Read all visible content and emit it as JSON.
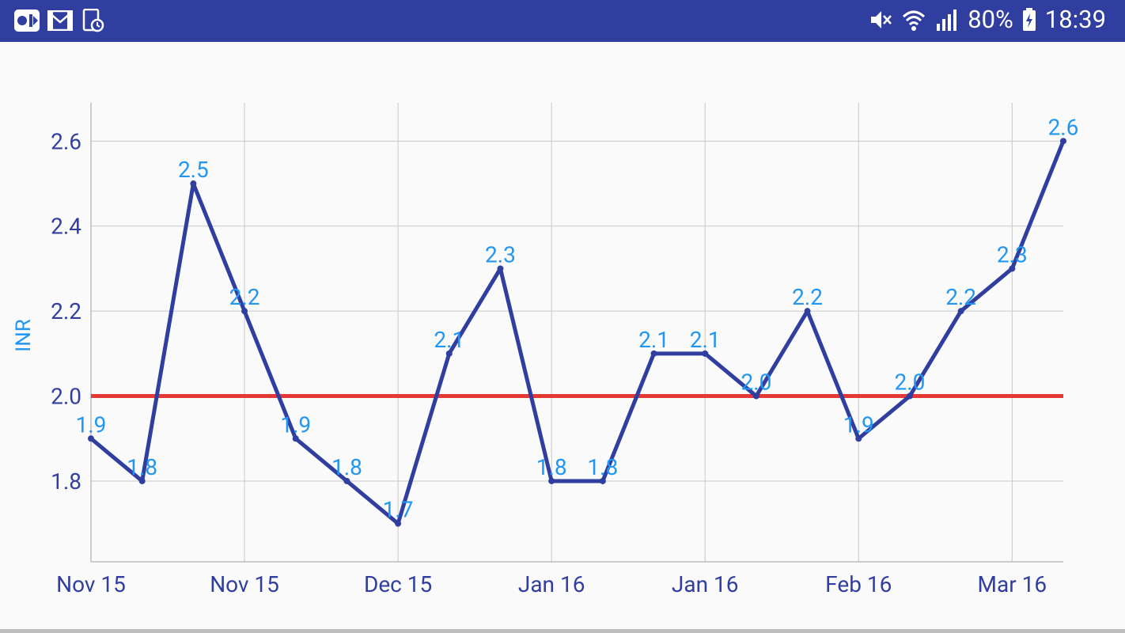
{
  "status_bar": {
    "battery": "80%",
    "time": "18:39",
    "left_icons": [
      "video-app-icon",
      "gmail-icon",
      "reminder-icon"
    ],
    "right_icons": [
      "mute-icon",
      "wifi-icon",
      "signal-icon",
      "battery-charging-icon"
    ],
    "background": "#303f9f"
  },
  "chart_data": {
    "type": "line",
    "ylabel": "INR",
    "ylim": [
      1.61,
      2.69
    ],
    "yticks": [
      1.8,
      2.0,
      2.2,
      2.4,
      2.6
    ],
    "ytick_labels": [
      "1.8",
      "2.0",
      "2.2",
      "2.4",
      "2.6"
    ],
    "xtick_labels": [
      "Nov 15",
      "Nov 15",
      "Dec 15",
      "Jan 16",
      "Jan 16",
      "Feb 16",
      "Mar 16"
    ],
    "grid": true,
    "reference_line": 2.0,
    "series": [
      {
        "values": [
          1.9,
          1.8,
          2.5,
          2.2,
          1.9,
          1.8,
          1.7,
          2.1,
          2.3,
          1.8,
          1.8,
          2.1,
          2.1,
          2.0,
          2.2,
          1.9,
          2.0,
          2.2,
          2.3,
          2.6
        ],
        "labels": [
          "1.9",
          "1.8",
          "2.5",
          "2.2",
          "1.9",
          "1.8",
          "1.7",
          "2.1",
          "2.3",
          "1.8",
          "1.8",
          "2.1",
          "2.1",
          "2.0",
          "2.2",
          "1.9",
          "2.0",
          "2.2",
          "2.3",
          "2.6"
        ]
      }
    ],
    "colors": {
      "line": "#303f9f",
      "reference": "#e53935",
      "value_label": "#2196f3",
      "axis_label": "#2196f3",
      "tick_label": "#303f9f",
      "grid": "#c8c8c8"
    }
  }
}
